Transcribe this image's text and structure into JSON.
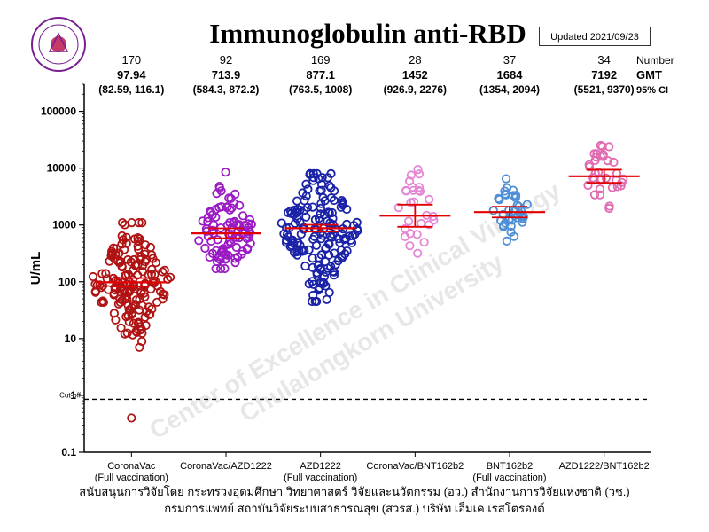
{
  "title": "Immunoglobulin anti-RBD",
  "updated": "Updated 2021/09/23",
  "logo": {
    "icon": "center-seal-logo",
    "color": "#7a1f8f"
  },
  "watermark": {
    "line1": "Center of Excellence in Clinical Virology",
    "line2": "Chulalongkorn University"
  },
  "footer": {
    "line1": "สนับสนุนการวิจัยโดย กระทรวงอุดมศึกษา วิทยาศาสตร์ วิจัยและนวัตกรรม (อว.) สำนักงานการวิจัยแห่งชาติ (วช.)",
    "line2": "กรมการแพทย์ สถาบันวิจัยระบบสาธารณสุข (สวรส.) บริษัท เอ็มเค เรสโตรองต์"
  },
  "chart_data": {
    "type": "scatter",
    "yscale": "log",
    "ylim": [
      0.1,
      300000
    ],
    "ylabel": "U/mL",
    "yticks": [
      "0.1",
      "1",
      "10",
      "100",
      "1000",
      "10000",
      "100000"
    ],
    "cutoff": {
      "label": "Cut-off",
      "value": 0.85
    },
    "header_labels": {
      "number": "Number",
      "gmt": "GMT",
      "ci": "95% CI"
    },
    "groups": [
      {
        "label": "CoronaVac",
        "sublabel": "(Full vaccination)",
        "n": "170",
        "gmt": "97.94",
        "ci": "(82.59, 116.1)",
        "gmt_value": 97.94,
        "ci_low": 82.59,
        "ci_high": 116.1,
        "min": 7,
        "max": 1100,
        "outliers": [
          0.4
        ],
        "color": "#b01313"
      },
      {
        "label": "CoronaVac/AZD1222",
        "sublabel": "",
        "n": "92",
        "gmt": "713.9",
        "ci": "(584.3, 872.2)",
        "gmt_value": 713.9,
        "ci_low": 584.3,
        "ci_high": 872.2,
        "min": 170,
        "max": 8500,
        "outliers": [],
        "color": "#9b1bc4"
      },
      {
        "label": "AZD1222",
        "sublabel": "(Full vaccination)",
        "n": "169",
        "gmt": "877.1",
        "ci": "(763.5, 1008)",
        "gmt_value": 877.1,
        "ci_low": 763.5,
        "ci_high": 1008,
        "min": 45,
        "max": 8000,
        "outliers": [],
        "color": "#1a22a8"
      },
      {
        "label": "CoronaVac/BNT162b2",
        "sublabel": "",
        "n": "28",
        "gmt": "1452",
        "ci": "(926.9, 2276)",
        "gmt_value": 1452,
        "ci_low": 926.9,
        "ci_high": 2276,
        "min": 230,
        "max": 13000,
        "outliers": [],
        "color": "#e487d6"
      },
      {
        "label": "BNT162b2",
        "sublabel": "(Full vaccination)",
        "n": "37",
        "gmt": "1684",
        "ci": "(1354, 2094)",
        "gmt_value": 1684,
        "ci_low": 1354,
        "ci_high": 2094,
        "min": 520,
        "max": 6500,
        "outliers": [],
        "color": "#4f8fd6"
      },
      {
        "label": "AZD1222/BNT162b2",
        "sublabel": "",
        "n": "34",
        "gmt": "7192",
        "ci": "(5521, 9370)",
        "gmt_value": 7192,
        "ci_low": 5521,
        "ci_high": 9370,
        "min": 1500,
        "max": 40000,
        "outliers": [],
        "color": "#e06ab0"
      }
    ],
    "mean_line_color": "#e00000",
    "grid": false,
    "legend": "none"
  }
}
